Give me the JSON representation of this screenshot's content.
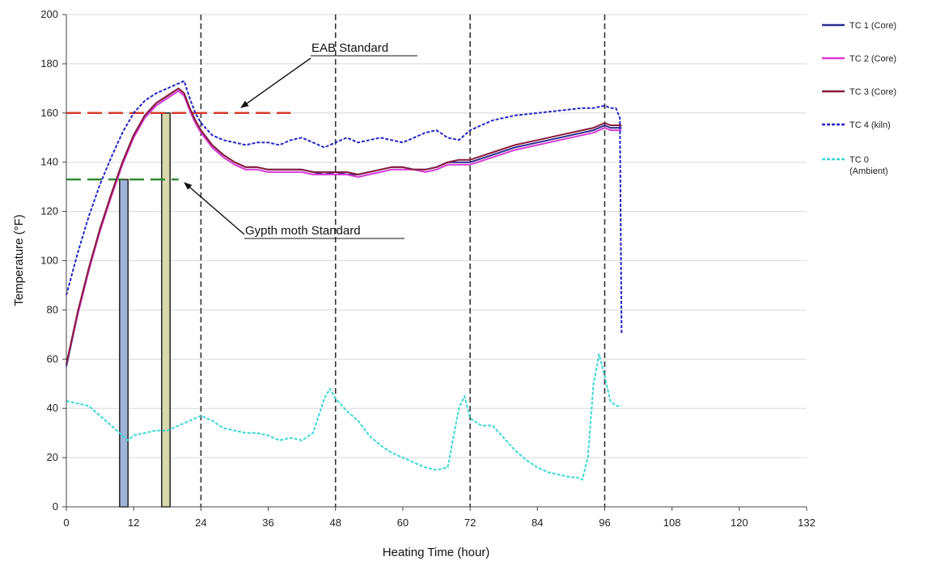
{
  "chart_data": {
    "type": "line",
    "xlabel": "Heating Time (hour)",
    "ylabel": "Temperature (°F)",
    "xlim": [
      0,
      132
    ],
    "ylim": [
      0,
      200
    ],
    "xticks": [
      0,
      12,
      24,
      36,
      48,
      60,
      72,
      84,
      96,
      108,
      120,
      132
    ],
    "yticks": [
      0,
      20,
      40,
      60,
      80,
      100,
      120,
      140,
      160,
      180,
      200
    ],
    "grid": "horizontal",
    "legend_position": "right",
    "series": [
      {
        "name": "TC 1 (Core)",
        "color": "#2b2b8f",
        "style": "solid",
        "x": [
          0,
          2,
          4,
          6,
          8,
          10,
          12,
          14,
          16,
          18,
          20,
          21,
          22,
          23,
          24,
          26,
          28,
          30,
          32,
          34,
          36,
          38,
          40,
          42,
          44,
          46,
          48,
          50,
          52,
          54,
          56,
          58,
          60,
          62,
          64,
          66,
          68,
          70,
          72,
          76,
          80,
          84,
          88,
          92,
          94,
          96,
          97,
          98,
          99
        ],
        "y": [
          57,
          78,
          96,
          113,
          127,
          140,
          151,
          159,
          164,
          167,
          170,
          168,
          162,
          157,
          153,
          147,
          143,
          140,
          138,
          138,
          137,
          137,
          137,
          137,
          136,
          135,
          136,
          135,
          135,
          136,
          137,
          138,
          138,
          137,
          137,
          138,
          140,
          140,
          140,
          143,
          146,
          148,
          150,
          152,
          153,
          155,
          154,
          154,
          154
        ]
      },
      {
        "name": "TC 2 (Core)",
        "color": "#d63ad6",
        "style": "solid",
        "x": [
          0,
          2,
          4,
          6,
          8,
          10,
          12,
          14,
          16,
          18,
          20,
          21,
          22,
          23,
          24,
          26,
          28,
          30,
          32,
          34,
          36,
          38,
          40,
          42,
          44,
          46,
          48,
          50,
          52,
          54,
          56,
          58,
          60,
          62,
          64,
          66,
          68,
          70,
          72,
          76,
          80,
          84,
          88,
          92,
          94,
          96,
          97,
          98,
          99
        ],
        "y": [
          58,
          78,
          96,
          112,
          126,
          139,
          150,
          158,
          163,
          166,
          169,
          167,
          161,
          156,
          152,
          146,
          142,
          139,
          137,
          137,
          136,
          136,
          136,
          136,
          135,
          135,
          135,
          135,
          134,
          135,
          136,
          137,
          137,
          137,
          136,
          137,
          139,
          139,
          139,
          142,
          145,
          147,
          149,
          151,
          152,
          154,
          153,
          153,
          153
        ]
      },
      {
        "name": "TC 3 (Core)",
        "color": "#8b1a3a",
        "style": "solid",
        "x": [
          0,
          2,
          4,
          6,
          8,
          10,
          12,
          14,
          16,
          18,
          20,
          21,
          22,
          23,
          24,
          26,
          28,
          30,
          32,
          34,
          36,
          38,
          40,
          42,
          44,
          46,
          48,
          50,
          52,
          54,
          56,
          58,
          60,
          62,
          64,
          66,
          68,
          70,
          72,
          76,
          80,
          84,
          88,
          92,
          94,
          96,
          97,
          98,
          99
        ],
        "y": [
          58,
          79,
          97,
          113,
          127,
          140,
          151,
          159,
          164,
          167,
          170,
          168,
          162,
          157,
          153,
          147,
          143,
          140,
          138,
          138,
          137,
          137,
          137,
          137,
          136,
          136,
          136,
          136,
          135,
          136,
          137,
          138,
          138,
          137,
          137,
          138,
          140,
          141,
          141,
          144,
          147,
          149,
          151,
          153,
          154,
          156,
          155,
          155,
          155
        ]
      },
      {
        "name": "TC 4 (kiln)",
        "color": "#2424c8",
        "style": "dashed",
        "x": [
          0,
          2,
          4,
          6,
          8,
          10,
          12,
          14,
          16,
          18,
          20,
          21,
          22,
          23,
          24,
          26,
          28,
          30,
          32,
          34,
          36,
          38,
          40,
          42,
          44,
          46,
          48,
          50,
          52,
          54,
          56,
          58,
          60,
          62,
          64,
          66,
          68,
          70,
          72,
          76,
          80,
          84,
          88,
          92,
          94,
          96,
          97,
          98,
          98.7,
          99
        ],
        "y": [
          86,
          103,
          118,
          131,
          142,
          152,
          160,
          165,
          168,
          170,
          172,
          173,
          166,
          160,
          156,
          151,
          149,
          148,
          147,
          148,
          148,
          147,
          149,
          150,
          148,
          146,
          148,
          150,
          148,
          149,
          150,
          149,
          148,
          150,
          152,
          153,
          150,
          149,
          153,
          157,
          159,
          160,
          161,
          162,
          162,
          163,
          162,
          162,
          158,
          70
        ]
      },
      {
        "name": "TC 0 (Ambient)",
        "color": "#3cd6d6",
        "style": "dashed",
        "x": [
          0,
          2,
          4,
          6,
          8,
          10,
          11,
          12,
          14,
          16,
          18,
          20,
          22,
          24,
          26,
          28,
          30,
          32,
          34,
          36,
          38,
          40,
          42,
          44,
          46,
          47,
          48,
          50,
          52,
          54,
          56,
          58,
          60,
          62,
          64,
          66,
          68,
          69,
          70,
          71,
          72,
          74,
          76,
          78,
          80,
          82,
          84,
          86,
          88,
          90,
          91,
          92,
          93,
          94,
          95,
          96,
          97,
          98,
          99
        ],
        "y": [
          43,
          42,
          41,
          37,
          33,
          29,
          27,
          29,
          30,
          31,
          31,
          33,
          35,
          37,
          35,
          32,
          31,
          30,
          30,
          29,
          27,
          28,
          27,
          30,
          44,
          48,
          44,
          39,
          35,
          29,
          25,
          22,
          20,
          18,
          16,
          15,
          16,
          28,
          40,
          45,
          36,
          33,
          33,
          28,
          23,
          19,
          16,
          14,
          13,
          12,
          12,
          11,
          20,
          50,
          62,
          53,
          43,
          41,
          41
        ]
      }
    ],
    "bars": [
      {
        "x_start": 9.5,
        "x_end": 11,
        "top": 133,
        "color": "#9fb4d9"
      },
      {
        "x_start": 17,
        "x_end": 18.5,
        "top": 160,
        "color": "#d8d9ad"
      }
    ],
    "vertical_lines": [
      24,
      48,
      72,
      96
    ],
    "reference_lines": [
      {
        "value": 160,
        "x_start": 0,
        "x_end": 40,
        "color": "#d63a2a",
        "label": "EAB Standard"
      },
      {
        "value": 133,
        "x_start": 0,
        "x_end": 20,
        "color": "#2f8a2f",
        "label": "Gypth moth Standard"
      }
    ]
  }
}
